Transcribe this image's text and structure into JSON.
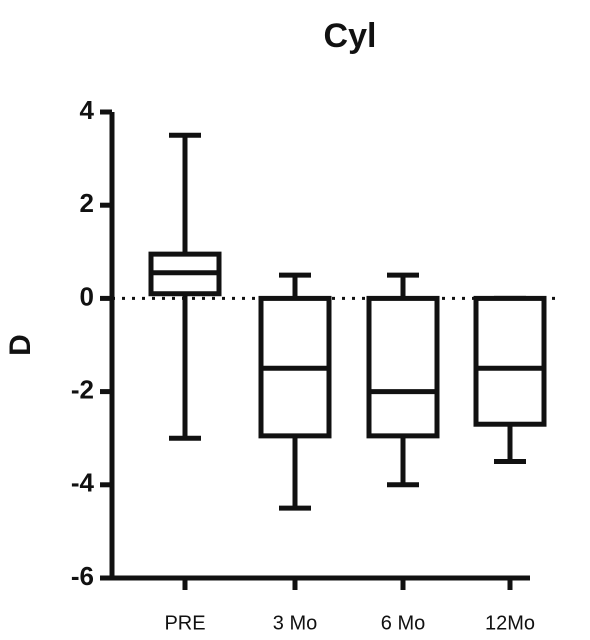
{
  "chart_data": {
    "type": "box",
    "title": "Cyl",
    "y_label": "D",
    "categories": [
      "PRE",
      "3 Mo",
      "6 Mo",
      "12Mo"
    ],
    "min": [
      -3,
      -4.5,
      -4,
      -3.5
    ],
    "q1": [
      0.1,
      -2.95,
      -2.95,
      -2.7
    ],
    "median": [
      0.55,
      -1.5,
      -2,
      -1.5
    ],
    "q3": [
      0.95,
      0,
      0,
      0
    ],
    "max": [
      3.5,
      0.5,
      0.5,
      0
    ],
    "color": "#111111",
    "ylim": [
      -6,
      4
    ],
    "yticks": [
      4,
      2,
      0,
      -2,
      -4,
      -6
    ],
    "reference_line": 0
  }
}
